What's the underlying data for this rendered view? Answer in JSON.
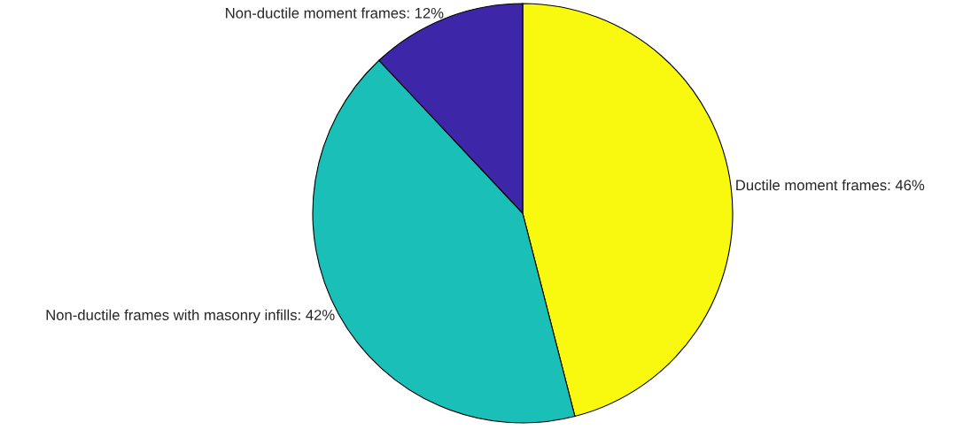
{
  "chart_data": {
    "type": "pie",
    "categories": [
      "Ductile moment frames: 46%",
      "Non-ductile frames with masonry infills: 42%",
      "Non-ductile moment frames: 12%"
    ],
    "values": [
      46,
      42,
      12
    ],
    "colors": [
      "#f9f90f",
      "#1abfb7",
      "#3e26a8"
    ]
  }
}
